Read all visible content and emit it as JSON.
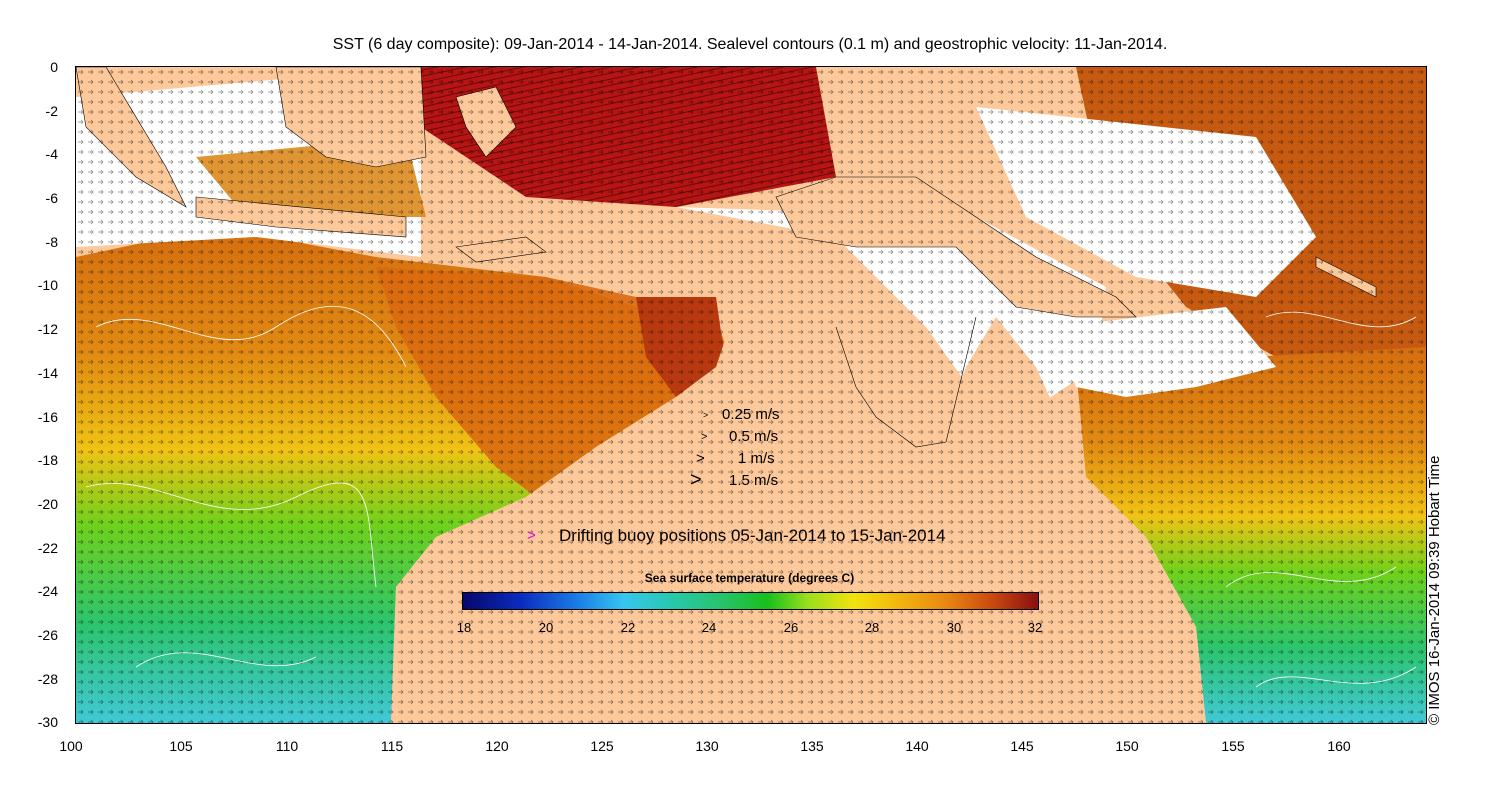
{
  "title": "SST (6 day composite): 09-Jan-2014 - 14-Jan-2014. Sealevel contours (0.1 m) and geostrophic velocity: 11-Jan-2014.",
  "y_axis": {
    "ticks": [
      "0",
      "-2",
      "-4",
      "-6",
      "-8",
      "-10",
      "-12",
      "-14",
      "-16",
      "-18",
      "-20",
      "-22",
      "-24",
      "-26",
      "-28",
      "-30"
    ]
  },
  "x_axis": {
    "ticks": [
      "100",
      "105",
      "110",
      "115",
      "120",
      "125",
      "130",
      "135",
      "140",
      "145",
      "150",
      "155",
      "160"
    ]
  },
  "velocity_legend": [
    {
      "label": "0.25 m/s",
      "glyph": ">"
    },
    {
      "label": "0.5 m/s",
      "glyph": ">"
    },
    {
      "label": "1 m/s",
      "glyph": ">"
    },
    {
      "label": "1.5 m/s",
      "glyph": ">"
    }
  ],
  "buoy_legend": {
    "glyph": ">",
    "label": "Drifting buoy positions 05-Jan-2014 to 15-Jan-2014"
  },
  "colorbar": {
    "title": "Sea surface temperature (degrees C)",
    "ticks": [
      "18",
      "20",
      "22",
      "24",
      "26",
      "28",
      "30",
      "32"
    ]
  },
  "credit": "© IMOS 16-Jan-2014 09:39 Hobart Time",
  "colors": {
    "land": "#fdc89a",
    "buoy": "#e000e0",
    "cloud": "#ffffff"
  }
}
